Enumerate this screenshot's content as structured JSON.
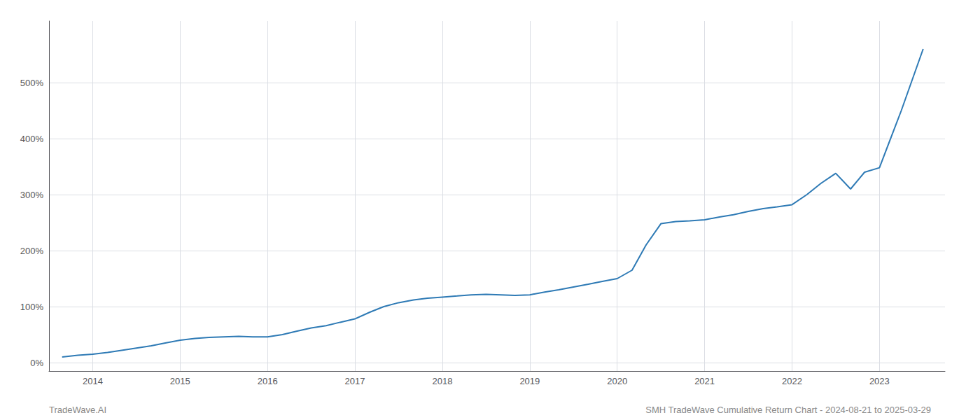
{
  "chart_data": {
    "type": "line",
    "x": [
      2013.65,
      2013.83,
      2014.0,
      2014.17,
      2014.33,
      2014.5,
      2014.67,
      2014.83,
      2015.0,
      2015.17,
      2015.33,
      2015.5,
      2015.67,
      2015.83,
      2016.0,
      2016.17,
      2016.33,
      2016.5,
      2016.67,
      2016.83,
      2017.0,
      2017.17,
      2017.33,
      2017.5,
      2017.67,
      2017.83,
      2018.0,
      2018.17,
      2018.33,
      2018.5,
      2018.67,
      2018.83,
      2019.0,
      2019.17,
      2019.33,
      2019.5,
      2019.67,
      2019.83,
      2020.0,
      2020.17,
      2020.33,
      2020.5,
      2020.67,
      2020.83,
      2021.0,
      2021.17,
      2021.33,
      2021.5,
      2021.67,
      2021.83,
      2022.0,
      2022.17,
      2022.33,
      2022.5,
      2022.67,
      2022.83,
      2023.0,
      2023.25,
      2023.5
    ],
    "values": [
      10,
      13,
      15,
      18,
      22,
      26,
      30,
      35,
      40,
      43,
      45,
      46,
      47,
      46,
      46,
      50,
      56,
      62,
      66,
      72,
      78,
      90,
      100,
      107,
      112,
      115,
      117,
      119,
      121,
      122,
      121,
      120,
      121,
      126,
      130,
      135,
      140,
      145,
      150,
      165,
      210,
      248,
      252,
      253,
      255,
      260,
      264,
      270,
      275,
      278,
      282,
      300,
      320,
      338,
      310,
      340,
      348,
      450,
      560
    ],
    "color": "#2e7ab5",
    "xlim": [
      2013.5,
      2023.75
    ],
    "ylim": [
      -15,
      610
    ],
    "xticks": [
      2014,
      2015,
      2016,
      2017,
      2018,
      2019,
      2020,
      2021,
      2022,
      2023
    ],
    "yticks": [
      {
        "value": 0,
        "label": "0%"
      },
      {
        "value": 100,
        "label": "100%"
      },
      {
        "value": 200,
        "label": "200%"
      },
      {
        "value": 300,
        "label": "300%"
      },
      {
        "value": 400,
        "label": "400%"
      },
      {
        "value": 500,
        "label": "500%"
      }
    ],
    "grid": true,
    "annotations": [
      "TradeWave.AI",
      "SMH TradeWave Cumulative Return Chart - 2024-08-21 to 2025-03-29"
    ]
  }
}
